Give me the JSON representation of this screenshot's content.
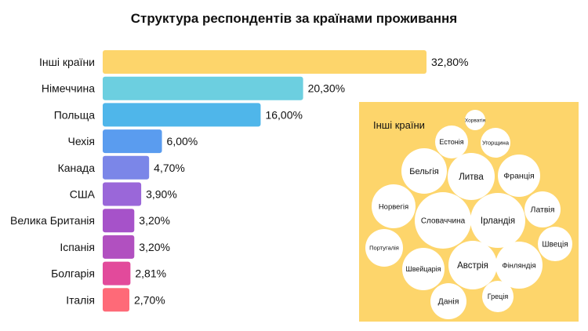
{
  "chart_data": [
    {
      "type": "bar",
      "orientation": "horizontal",
      "title": "Структура респондентів за країнами проживання",
      "categories": [
        "Інші країни",
        "Німеччина",
        "Польща",
        "Чехія",
        "Канада",
        "США",
        "Велика Британія",
        "Іспанія",
        "Болгарія",
        "Італія"
      ],
      "values": [
        32.8,
        20.3,
        16.0,
        6.0,
        4.7,
        3.9,
        3.2,
        3.2,
        2.81,
        2.7
      ],
      "value_labels": [
        "32,80%",
        "20,30%",
        "16,00%",
        "6,00%",
        "4,70%",
        "3,90%",
        "3,20%",
        "3,20%",
        "2,81%",
        "2,70%"
      ],
      "colors": [
        "#fdd56b",
        "#6ccfe0",
        "#4fb6ea",
        "#5a9cef",
        "#7b86e8",
        "#9a67d9",
        "#a652c9",
        "#b150c0",
        "#e24a9b",
        "#fe6a78"
      ],
      "xlim": [
        0,
        32.8
      ],
      "grid": false
    },
    {
      "type": "bubble",
      "title": "Інші країни",
      "background": "#fdd56b",
      "bubble_color": "#ffffff",
      "items": [
        {
          "label": "Хорватія"
        },
        {
          "label": "Естонія"
        },
        {
          "label": "Угорщина"
        },
        {
          "label": "Бельгія"
        },
        {
          "label": "Литва"
        },
        {
          "label": "Франція"
        },
        {
          "label": "Норвегія"
        },
        {
          "label": "Словаччина"
        },
        {
          "label": "Ірландія"
        },
        {
          "label": "Латвія"
        },
        {
          "label": "Португалія"
        },
        {
          "label": "Швеція"
        },
        {
          "label": "Швейцарія"
        },
        {
          "label": "Австрія"
        },
        {
          "label": "Фінляндія"
        },
        {
          "label": "Данія"
        },
        {
          "label": "Греція"
        }
      ]
    }
  ]
}
